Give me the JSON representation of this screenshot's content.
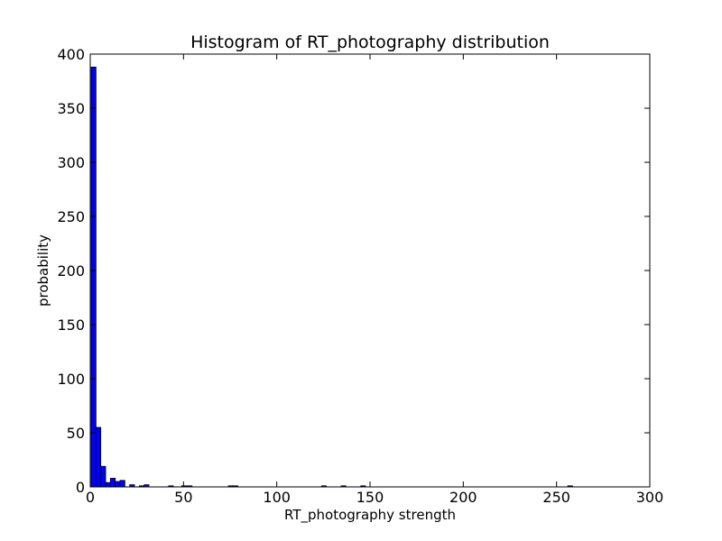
{
  "chart_data": {
    "type": "bar",
    "title": "Histogram of RT_photography  distribution",
    "xlabel": "RT_photography  strength",
    "ylabel": "probability",
    "xlim": [
      0,
      300
    ],
    "ylim": [
      0,
      400
    ],
    "xticks": [
      0,
      50,
      100,
      150,
      200,
      250,
      300
    ],
    "yticks": [
      0,
      50,
      100,
      150,
      200,
      250,
      300,
      350,
      400
    ],
    "bin_width": 2.58,
    "bar_color": "#0000ff",
    "grid": false,
    "bins": [
      {
        "x": 0.5,
        "count": 388
      },
      {
        "x": 3.08,
        "count": 55
      },
      {
        "x": 5.66,
        "count": 19
      },
      {
        "x": 8.24,
        "count": 4
      },
      {
        "x": 10.82,
        "count": 8
      },
      {
        "x": 13.4,
        "count": 5
      },
      {
        "x": 15.98,
        "count": 6
      },
      {
        "x": 21.14,
        "count": 2
      },
      {
        "x": 26.3,
        "count": 1
      },
      {
        "x": 28.88,
        "count": 2
      },
      {
        "x": 42.0,
        "count": 1
      },
      {
        "x": 49.0,
        "count": 1
      },
      {
        "x": 52.0,
        "count": 1
      },
      {
        "x": 74.0,
        "count": 1
      },
      {
        "x": 76.6,
        "count": 1
      },
      {
        "x": 124.0,
        "count": 1
      },
      {
        "x": 134.5,
        "count": 1
      },
      {
        "x": 145.0,
        "count": 1
      },
      {
        "x": 256.0,
        "count": 1
      }
    ]
  }
}
